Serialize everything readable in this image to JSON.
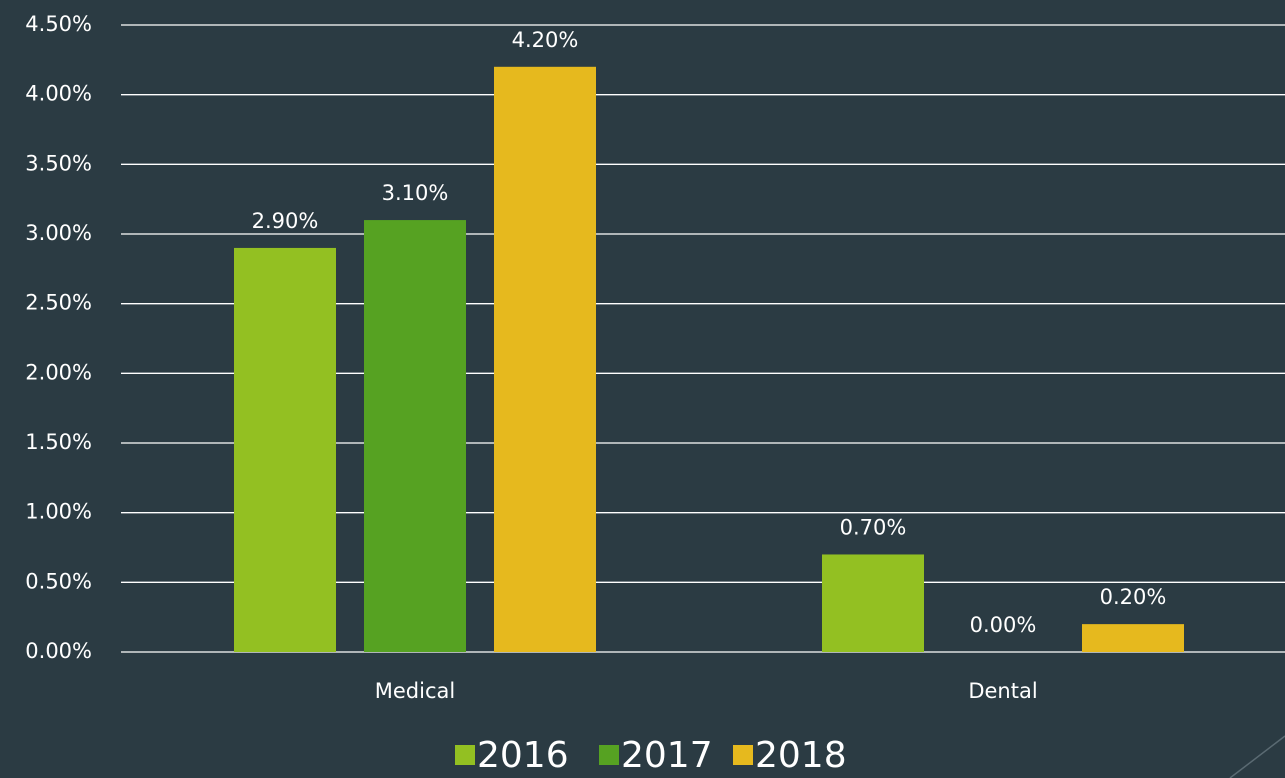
{
  "chart_data": {
    "type": "bar",
    "categories": [
      "Medical",
      "Dental"
    ],
    "series": [
      {
        "name": "2016",
        "color": "#93c022",
        "values": [
          2.9,
          0.7
        ],
        "value_labels": [
          "2.90%",
          "0.70%"
        ]
      },
      {
        "name": "2017",
        "color": "#56a222",
        "values": [
          3.1,
          0
        ],
        "value_labels": [
          "3.10%",
          "0.00%"
        ]
      },
      {
        "name": "2018",
        "color": "#e6b91e",
        "values": [
          4.2,
          0.2
        ],
        "value_labels": [
          "4.20%",
          "0.20%"
        ]
      }
    ],
    "ylim": [
      0,
      4.5
    ],
    "yticks": [
      {
        "value": 0,
        "label": "0.00%"
      },
      {
        "value": 0.5,
        "label": "0.50%"
      },
      {
        "value": 1,
        "label": "1.00%"
      },
      {
        "value": 1.5,
        "label": "1.50%"
      },
      {
        "value": 2,
        "label": "2.00%"
      },
      {
        "value": 2.5,
        "label": "2.50%"
      },
      {
        "value": 3,
        "label": "3.00%"
      },
      {
        "value": 3.5,
        "label": "3.50%"
      },
      {
        "value": 4,
        "label": "4.00%"
      },
      {
        "value": 4.5,
        "label": "4.50%"
      }
    ],
    "grid": true,
    "legend": "bottom"
  }
}
